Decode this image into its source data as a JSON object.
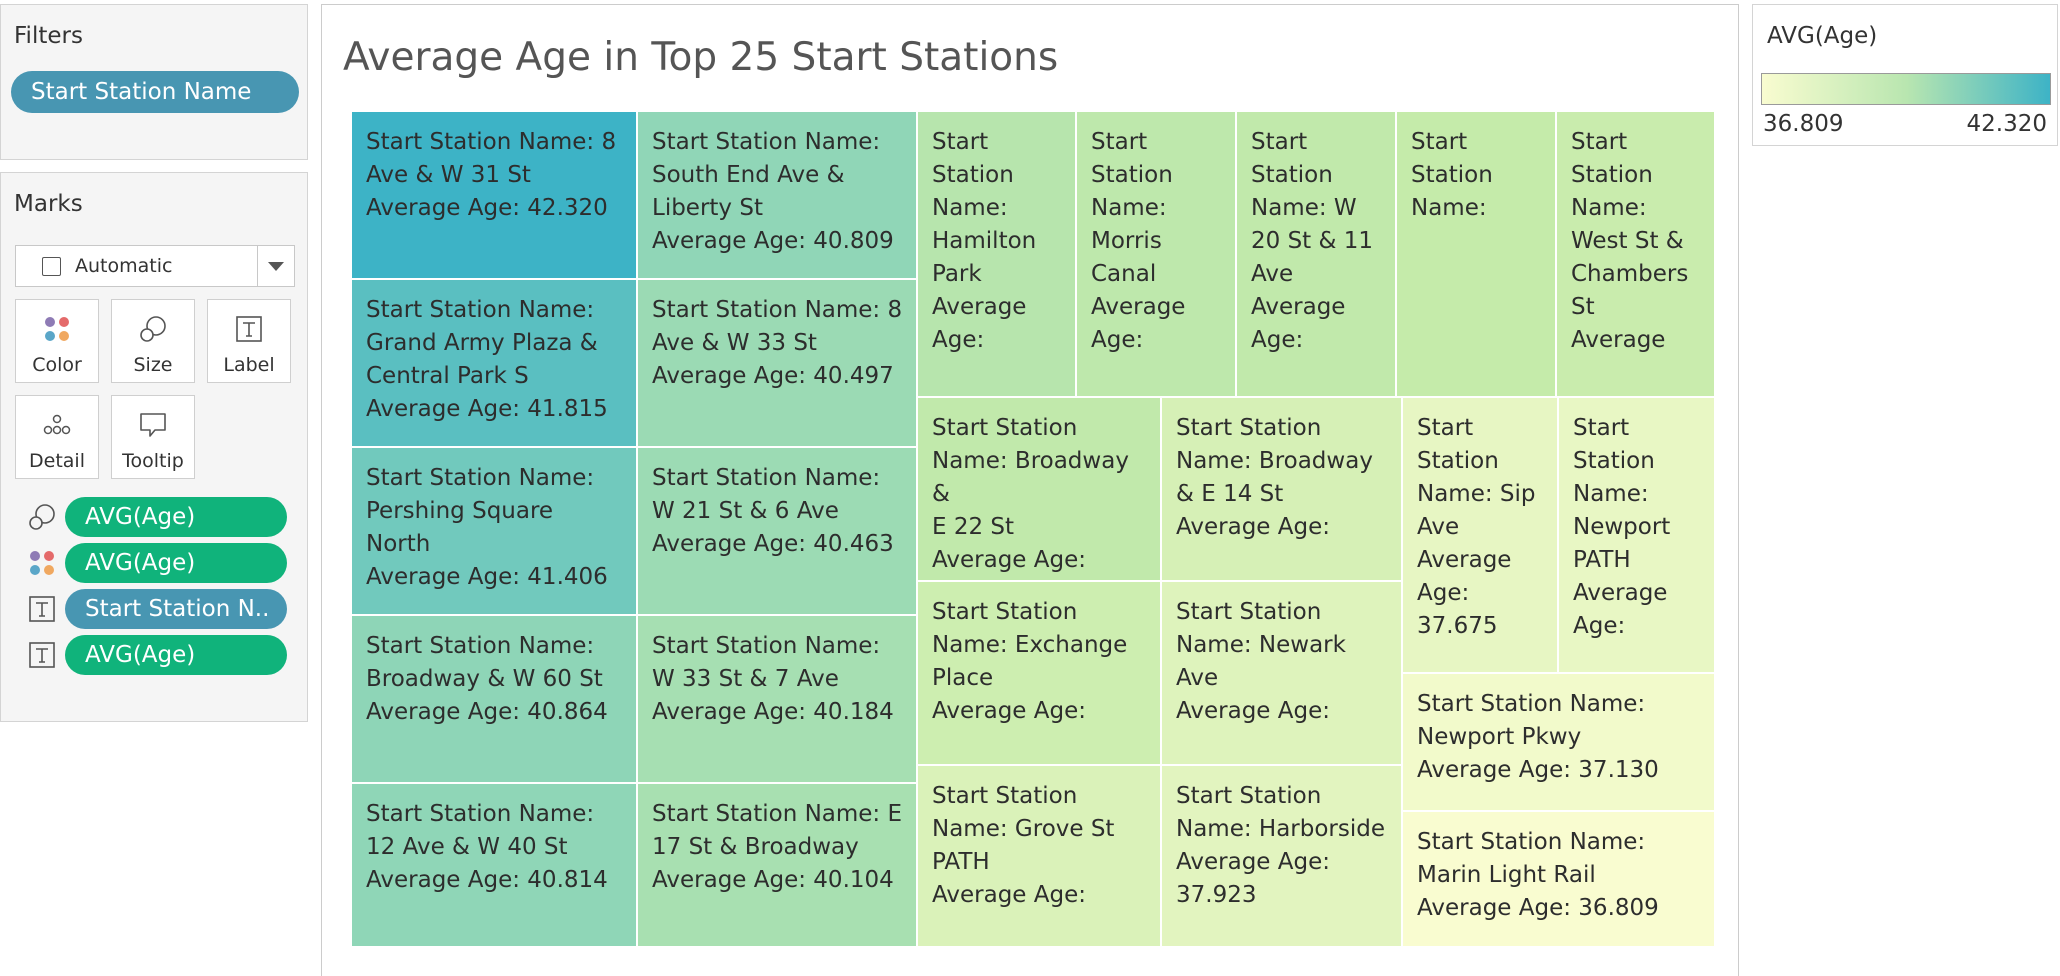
{
  "filters": {
    "title": "Filters",
    "pills": [
      "Start Station Name"
    ]
  },
  "marks": {
    "title": "Marks",
    "mark_type": "Automatic",
    "buttons": [
      {
        "label": "Color",
        "icon": "color-dots-icon"
      },
      {
        "label": "Size",
        "icon": "size-circles-icon"
      },
      {
        "label": "Label",
        "icon": "text-label-icon"
      },
      {
        "label": "Detail",
        "icon": "detail-dots-icon"
      },
      {
        "label": "Tooltip",
        "icon": "tooltip-bubble-icon"
      }
    ],
    "shelf": [
      {
        "icon": "size-circles-icon",
        "label": "AVG(Age)",
        "kind": "measure"
      },
      {
        "icon": "color-dots-icon",
        "label": "AVG(Age)",
        "kind": "measure"
      },
      {
        "icon": "text-label-icon",
        "label": "Start Station N..",
        "kind": "dimension"
      },
      {
        "icon": "text-label-icon",
        "label": "AVG(Age)",
        "kind": "measure"
      }
    ]
  },
  "viz": {
    "title": "Average Age in Top 25 Start Stations"
  },
  "legend": {
    "title": "AVG(Age)",
    "min": "36.809",
    "max": "42.320",
    "color_low": "#f9fcd0",
    "color_high": "#3db3c6"
  },
  "chart_data": {
    "type": "treemap",
    "title": "Average Age in Top 25 Start Stations",
    "color_measure": "AVG(Age)",
    "size_measure": "AVG(Age)",
    "color_range": [
      36.809,
      42.32
    ],
    "tiles": [
      {
        "name": "8 Ave & W 31 St",
        "value": 42.32,
        "label": [
          "Start Station Name: 8",
          "Ave & W 31 St",
          "Average Age: 42.320"
        ]
      },
      {
        "name": "Grand Army Plaza & Central Park S",
        "value": 41.815,
        "label": [
          "Start Station Name:",
          "Grand Army Plaza &",
          "Central Park S",
          "Average Age: 41.815"
        ]
      },
      {
        "name": "Pershing Square North",
        "value": 41.406,
        "label": [
          "Start Station Name:",
          "Pershing Square",
          "North",
          "Average Age: 41.406"
        ]
      },
      {
        "name": "Broadway & W 60 St",
        "value": 40.864,
        "label": [
          "Start Station Name:",
          "Broadway & W 60 St",
          "Average Age: 40.864"
        ]
      },
      {
        "name": "12 Ave & W 40 St",
        "value": 40.814,
        "label": [
          "Start Station Name:",
          "12 Ave & W 40 St",
          "Average Age: 40.814"
        ]
      },
      {
        "name": "South End Ave & Liberty St",
        "value": 40.809,
        "label": [
          "Start Station Name:",
          "South End Ave &",
          "Liberty St",
          "Average Age: 40.809"
        ]
      },
      {
        "name": "8 Ave & W 33 St",
        "value": 40.497,
        "label": [
          "Start Station Name: 8",
          "Ave & W 33 St",
          "Average Age: 40.497"
        ]
      },
      {
        "name": "W 21 St & 6 Ave",
        "value": 40.463,
        "label": [
          "Start Station Name:",
          "W 21 St & 6 Ave",
          "Average Age: 40.463"
        ]
      },
      {
        "name": "W 33 St & 7 Ave",
        "value": 40.184,
        "label": [
          "Start Station Name:",
          "W 33 St & 7 Ave",
          "Average Age: 40.184"
        ]
      },
      {
        "name": "E 17 St & Broadway",
        "value": 40.104,
        "label": [
          "Start Station Name: E",
          "17 St & Broadway",
          "Average Age: 40.104"
        ]
      },
      {
        "name": "Hamilton Park",
        "value": null,
        "label": [
          "Start",
          "Station",
          "Name:",
          "Hamilton",
          "Park",
          "Average",
          "Age:"
        ]
      },
      {
        "name": "Morris Canal",
        "value": null,
        "label": [
          "Start",
          "Station",
          "Name:",
          "Morris",
          "Canal",
          "Average",
          "Age:"
        ]
      },
      {
        "name": "W 20 St & 11 Ave",
        "value": null,
        "label": [
          "Start",
          "Station",
          "Name: W",
          "20 St & 11",
          "Ave",
          "Average",
          "Age:"
        ]
      },
      {
        "name": "",
        "value": null,
        "label": [
          "Start",
          "Station",
          "Name:"
        ]
      },
      {
        "name": "West St & Chambers St",
        "value": null,
        "label": [
          "Start",
          "Station",
          "Name:",
          "West St &",
          "Chambers",
          "St",
          "Average"
        ]
      },
      {
        "name": "Broadway & E 22 St",
        "value": null,
        "label": [
          "Start Station",
          "Name: Broadway &",
          "E 22 St",
          "Average Age:"
        ]
      },
      {
        "name": "Broadway & E 14 St",
        "value": null,
        "label": [
          "Start Station",
          "Name: Broadway",
          "& E 14 St",
          "Average Age:"
        ]
      },
      {
        "name": "Sip Ave",
        "value": 37.675,
        "label": [
          "Start",
          "Station",
          "Name: Sip",
          "Ave",
          "Average",
          "Age:",
          "37.675"
        ]
      },
      {
        "name": "Newport PATH",
        "value": null,
        "label": [
          "Start",
          "Station",
          "Name:",
          "Newport",
          "PATH",
          "Average",
          "Age:"
        ]
      },
      {
        "name": "Exchange Place",
        "value": null,
        "label": [
          "Start Station",
          "Name: Exchange",
          "Place",
          "Average Age:"
        ]
      },
      {
        "name": "Newark Ave",
        "value": null,
        "label": [
          "Start Station",
          "Name: Newark",
          "Ave",
          "Average Age:"
        ]
      },
      {
        "name": "Newport Pkwy",
        "value": 37.13,
        "label": [
          "Start Station Name:",
          "Newport Pkwy",
          "Average Age: 37.130"
        ]
      },
      {
        "name": "Grove St PATH",
        "value": null,
        "label": [
          "Start Station",
          "Name: Grove St",
          "PATH",
          "Average Age:"
        ]
      },
      {
        "name": "Harborside",
        "value": 37.923,
        "label": [
          "Start Station",
          "Name: Harborside",
          "Average Age:",
          "37.923"
        ]
      },
      {
        "name": "Marin Light Rail",
        "value": 36.809,
        "label": [
          "Start Station Name:",
          "Marin Light Rail",
          "Average Age: 36.809"
        ]
      }
    ]
  }
}
